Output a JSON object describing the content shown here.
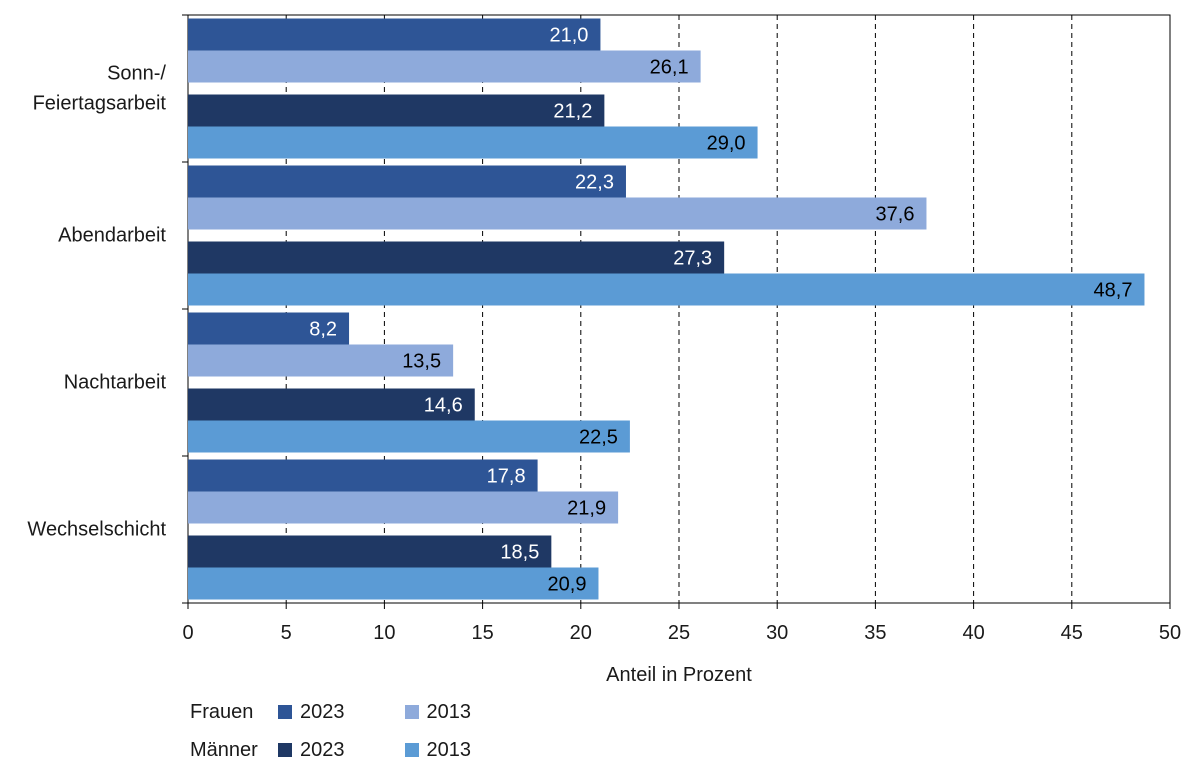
{
  "chart_data": {
    "type": "bar",
    "orientation": "horizontal",
    "categories": [
      "Sonn-/ Feiertagsarbeit",
      "Abendarbeit",
      "Nachtarbeit",
      "Wechselschicht"
    ],
    "category_lines": [
      [
        "Sonn-/",
        "Feiertagsarbeit"
      ],
      [
        "Abendarbeit"
      ],
      [
        "Nachtarbeit"
      ],
      [
        "Wechselschicht"
      ]
    ],
    "series": [
      {
        "group": "Frauen",
        "name": "2023",
        "color": "#2e5596",
        "label_color": "#ffffff",
        "values": [
          21.0,
          22.3,
          8.2,
          17.8
        ],
        "labels": [
          "21,0",
          "22,3",
          "8,2",
          "17,8"
        ]
      },
      {
        "group": "Frauen",
        "name": "2013",
        "color": "#8eaadb",
        "label_color": "#000000",
        "values": [
          26.1,
          37.6,
          13.5,
          21.9
        ],
        "labels": [
          "26,1",
          "37,6",
          "13,5",
          "21,9"
        ]
      },
      {
        "group": "Männer",
        "name": "2023",
        "color": "#1f3864",
        "label_color": "#ffffff",
        "values": [
          21.2,
          27.3,
          14.6,
          18.5
        ],
        "labels": [
          "21,2",
          "27,3",
          "14,6",
          "18,5"
        ]
      },
      {
        "group": "Männer",
        "name": "2013",
        "color": "#5b9bd5",
        "label_color": "#000000",
        "values": [
          29.0,
          48.7,
          22.5,
          20.9
        ],
        "labels": [
          "29,0",
          "48,7",
          "22,5",
          "20,9"
        ]
      }
    ],
    "xlim": [
      0,
      50
    ],
    "xticks": [
      0,
      5,
      10,
      15,
      20,
      25,
      30,
      35,
      40,
      45,
      50
    ],
    "xlabel": "Anteil in Prozent",
    "grid": "vertical-dashed",
    "legend_placement": "bottom-left"
  },
  "legend": {
    "frauen_label": "Frauen",
    "maenner_label": "Männer",
    "frauen_2023": "2023",
    "frauen_2013": "2013",
    "maenner_2023": "2023",
    "maenner_2013": "2013",
    "colors": {
      "frauen_2023": "#2e5596",
      "frauen_2013": "#8eaadb",
      "maenner_2023": "#1f3864",
      "maenner_2013": "#5b9bd5"
    }
  }
}
